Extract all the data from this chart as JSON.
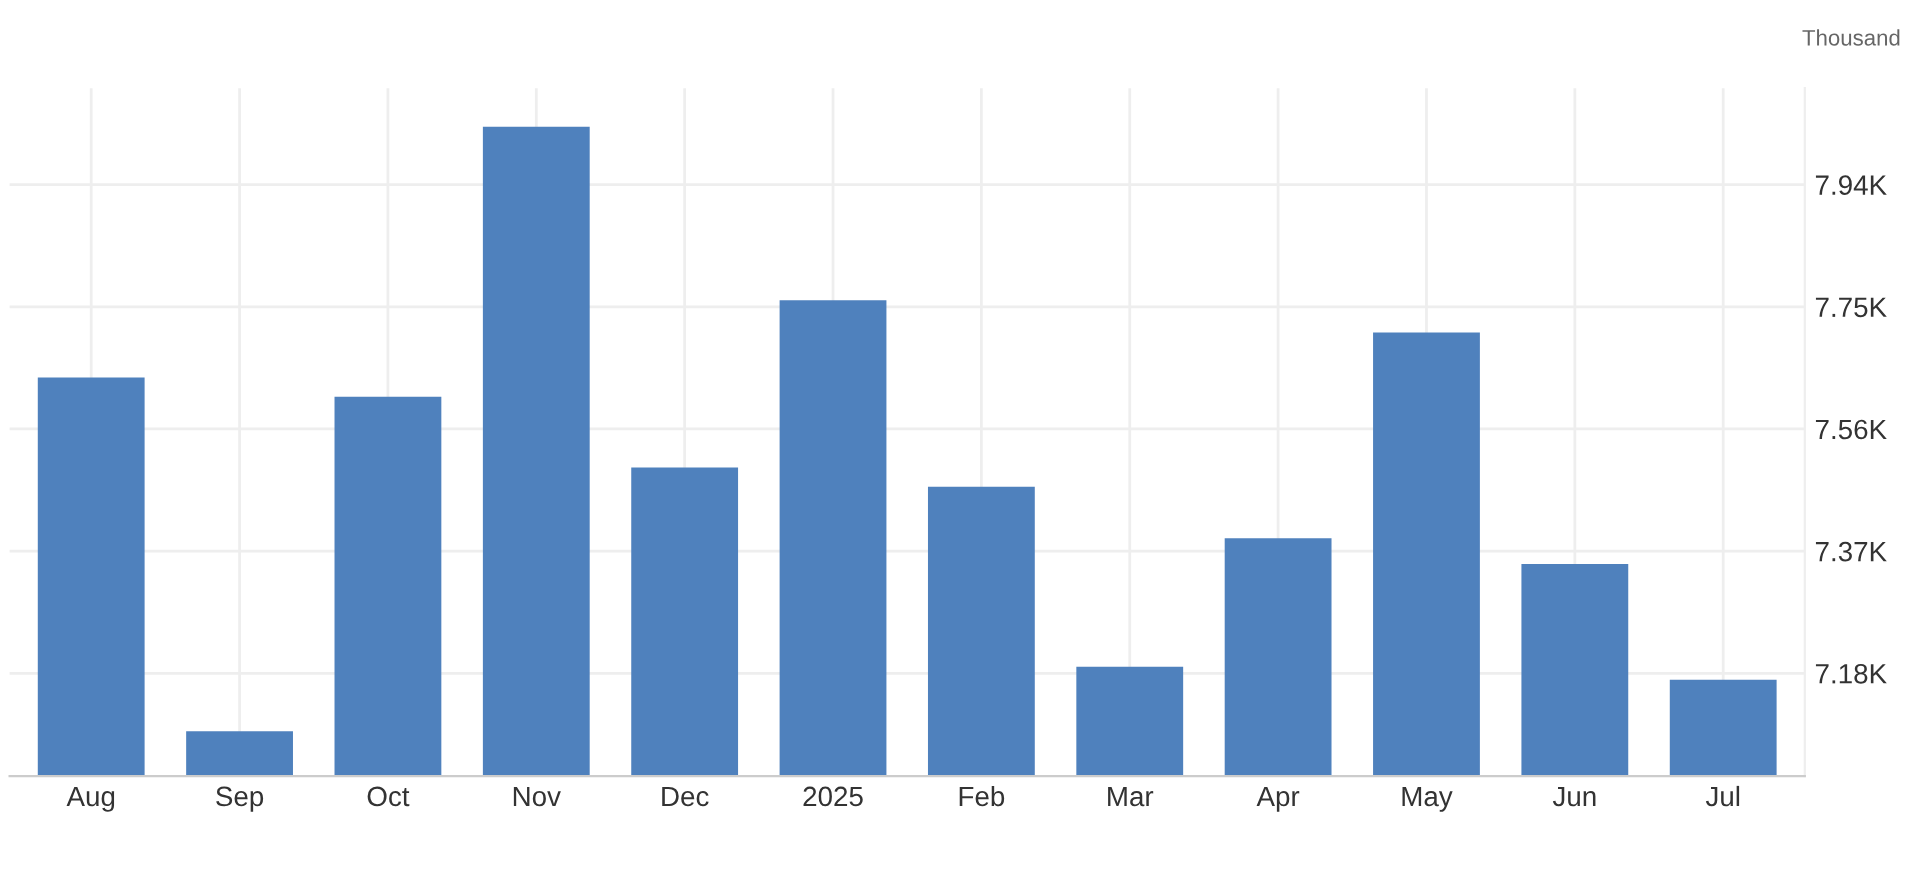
{
  "chart_data": {
    "type": "bar",
    "ylabel": "Thousand",
    "categories": [
      "Aug",
      "Sep",
      "Oct",
      "Nov",
      "Dec",
      "2025",
      "Feb",
      "Mar",
      "Apr",
      "May",
      "Jun",
      "Jul"
    ],
    "values": [
      7640,
      7090,
      7610,
      8030,
      7500,
      7760,
      7470,
      7190,
      7390,
      7710,
      7350,
      7170
    ],
    "color": "#4f81bd",
    "ylim": [
      7020,
      8090
    ],
    "yticks": [
      {
        "value": 7180,
        "label": "7.18K"
      },
      {
        "value": 7370,
        "label": "7.37K"
      },
      {
        "value": 7560,
        "label": "7.56K"
      },
      {
        "value": 7750,
        "label": "7.75K"
      },
      {
        "value": 7940,
        "label": "7.94K"
      }
    ],
    "grid": true
  }
}
